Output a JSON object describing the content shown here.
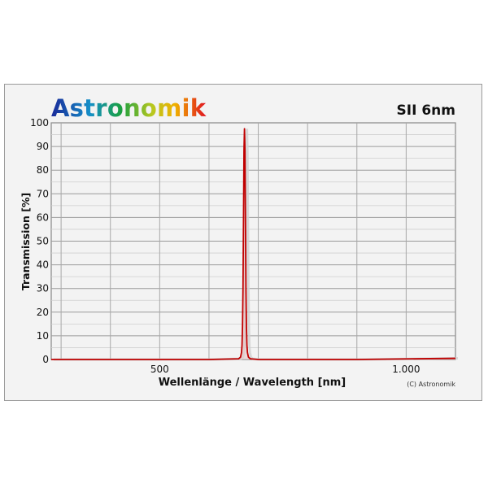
{
  "logo": {
    "text": "Astronomik"
  },
  "chart_data": {
    "type": "line",
    "title": "SII 6nm",
    "xlabel": "Wellenlänge / Wavelength [nm]",
    "ylabel": "Transmission [%]",
    "copyright": "(C) Astronomik",
    "xlim": [
      280,
      1100
    ],
    "ylim": [
      0,
      100
    ],
    "xticks": [
      {
        "value": 500,
        "label": "500"
      },
      {
        "value": 1000,
        "label": "1.000"
      }
    ],
    "xgrid": [
      300,
      400,
      500,
      600,
      700,
      800,
      900,
      1000
    ],
    "yticks": [
      0,
      10,
      20,
      30,
      40,
      50,
      60,
      70,
      80,
      90,
      100
    ],
    "grid": true,
    "series": [
      {
        "color": "#c00000",
        "x": [
          280,
          600,
          660,
          664,
          666,
          667,
          668,
          669,
          670,
          671,
          672,
          673,
          674,
          675,
          676,
          677,
          678,
          680,
          684,
          700,
          900,
          1100
        ],
        "y": [
          0,
          0,
          0.3,
          1,
          3,
          6,
          14,
          30,
          58,
          88,
          97.5,
          88,
          58,
          30,
          14,
          6,
          3,
          1,
          0.3,
          0,
          0,
          0.5
        ]
      }
    ]
  }
}
